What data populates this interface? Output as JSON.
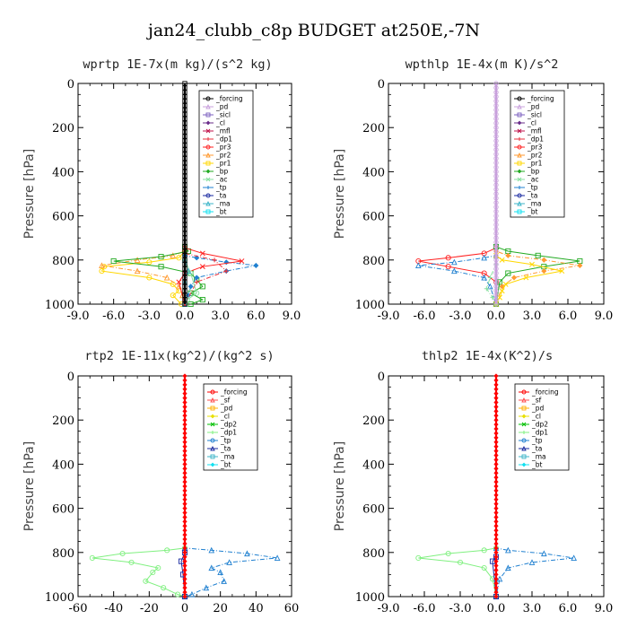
{
  "title": "jan24_clubb_c8p  BUDGET at250E,-7N",
  "colors": {
    "forcing": "#000000",
    "pd": "#c8a0dc",
    "sicl": "#7b5fbf",
    "cl": "#6a2c8a",
    "mfl": "#c0144c",
    "dp1": "#e8323c",
    "pr3": "#ff2020",
    "pr2": "#ff9a30",
    "pr1": "#ffd700",
    "bp": "#22aa22",
    "ac": "#88e0a0",
    "tp": "#2080d0",
    "ta": "#1a2aa0",
    "ma": "#3cb4c8",
    "bt": "#10e0f0",
    "forcing_red": "#ff0000",
    "sf": "#ff5050",
    "pd2": "#ffb000",
    "cl2": "#e8e000",
    "dp2": "#00c000",
    "dp1b": "#80f080"
  },
  "chart_data": [
    {
      "type": "line",
      "title": "wprtp  1E-7x(m kg)/(s^2 kg)",
      "ylabel": "Pressure [hPa]",
      "ylim": [
        1000,
        0
      ],
      "xlim": [
        -9,
        9
      ],
      "xticks": [
        "-9.0",
        "-6.0",
        "-3.0",
        "0.0",
        "3.0",
        "6.0",
        "9.0"
      ],
      "yticks": [
        "0",
        "200",
        "400",
        "600",
        "800",
        "1000"
      ],
      "legend": [
        "_forcing",
        "_pd",
        "_sicl",
        "_cl",
        "_mfl",
        "_dp1",
        "_pr3",
        "_pr2",
        "_pr1",
        "_bp",
        "_ac",
        "_tp",
        "_ta",
        "_ma",
        "_bt"
      ],
      "legend_position": "top-right",
      "series": [
        {
          "name": "_pr1",
          "color_key": "pr1",
          "x": [
            0,
            0,
            -0.5,
            -3,
            -6.8,
            -7,
            -3,
            -1,
            -0.5,
            -1,
            -0.3
          ],
          "y": [
            0,
            760,
            790,
            810,
            830,
            850,
            880,
            910,
            940,
            960,
            1000
          ]
        },
        {
          "name": "_pr2",
          "color_key": "pr2",
          "x": [
            0,
            0,
            -1,
            -4,
            -7,
            -4,
            -1.5,
            -0.5,
            -0.2,
            0
          ],
          "y": [
            0,
            760,
            780,
            800,
            825,
            850,
            880,
            920,
            960,
            1000
          ]
        },
        {
          "name": "_bp",
          "color_key": "bp",
          "x": [
            0,
            0,
            0.3,
            -2,
            -6,
            -2,
            0.5,
            1,
            1.5,
            0.5,
            1.5,
            0.5
          ],
          "y": [
            0,
            740,
            760,
            785,
            805,
            830,
            860,
            890,
            920,
            950,
            980,
            1000
          ]
        },
        {
          "name": "_tp",
          "color_key": "tp",
          "x": [
            0,
            0,
            1,
            3.5,
            6,
            3.5,
            1,
            0.5,
            0.3,
            0
          ],
          "y": [
            0,
            780,
            790,
            810,
            825,
            850,
            880,
            920,
            960,
            1000
          ]
        },
        {
          "name": "_pr3",
          "color_key": "pr3",
          "x": [
            0,
            0,
            1.5,
            4.8,
            1.5,
            0,
            -0.5,
            0
          ],
          "y": [
            0,
            745,
            770,
            805,
            830,
            860,
            900,
            1000
          ]
        },
        {
          "name": "_dp1",
          "color_key": "dp1",
          "x": [
            0,
            0,
            2.5,
            3.5,
            1,
            0
          ],
          "y": [
            0,
            770,
            800,
            850,
            900,
            1000
          ]
        },
        {
          "name": "_ac",
          "color_key": "ac",
          "x": [
            0,
            0,
            0.5,
            1,
            0.2,
            0
          ],
          "y": [
            0,
            800,
            860,
            950,
            980,
            1000
          ]
        },
        {
          "name": "_ma",
          "color_key": "ma",
          "x": [
            0,
            0,
            0.3,
            0,
            0
          ],
          "y": [
            0,
            800,
            850,
            900,
            1000
          ]
        },
        {
          "name": "_forcing",
          "color_key": "forcing",
          "x": [
            0,
            0
          ],
          "y": [
            0,
            1000
          ]
        }
      ]
    },
    {
      "type": "line",
      "title": "wpthlp  1E-4x(m K)/s^2",
      "ylabel": "Pressure [hPa]",
      "ylim": [
        1000,
        0
      ],
      "xlim": [
        -9,
        9
      ],
      "xticks": [
        "-9.0",
        "-6.0",
        "-3.0",
        "0.0",
        "3.0",
        "6.0",
        "9.0"
      ],
      "yticks": [
        "0",
        "200",
        "400",
        "600",
        "800",
        "1000"
      ],
      "legend": [
        "_forcing",
        "_pd",
        "_sicl",
        "_cl",
        "_mfl",
        "_dp1",
        "_pr3",
        "_pr2",
        "_pr1",
        "_bp",
        "_ac",
        "_tp",
        "_ta",
        "_ma",
        "_bt"
      ],
      "legend_position": "top-right",
      "series": [
        {
          "name": "_pr3",
          "color_key": "pr3",
          "x": [
            0,
            0,
            -1,
            -4,
            -6.5,
            -4,
            -1,
            0,
            0
          ],
          "y": [
            0,
            745,
            770,
            790,
            805,
            830,
            860,
            900,
            1000
          ]
        },
        {
          "name": "_tp",
          "color_key": "tp",
          "x": [
            0,
            0,
            -1,
            -3.5,
            -6.5,
            -3.5,
            -1,
            -0.5,
            0
          ],
          "y": [
            0,
            780,
            790,
            810,
            825,
            850,
            880,
            920,
            1000
          ]
        },
        {
          "name": "_bp",
          "color_key": "bp",
          "x": [
            0,
            0,
            1,
            3.5,
            7,
            4,
            1,
            0.3,
            0
          ],
          "y": [
            0,
            740,
            760,
            780,
            805,
            830,
            860,
            900,
            1000
          ]
        },
        {
          "name": "_pr2",
          "color_key": "pr2",
          "x": [
            0,
            0,
            1,
            4,
            7,
            4,
            1.5,
            0.5,
            0
          ],
          "y": [
            0,
            760,
            780,
            800,
            825,
            850,
            880,
            920,
            1000
          ]
        },
        {
          "name": "_pr1",
          "color_key": "pr1",
          "x": [
            0,
            0,
            0.5,
            3,
            5.5,
            2.5,
            0.8,
            0.5,
            0.3,
            0
          ],
          "y": [
            0,
            780,
            800,
            820,
            850,
            880,
            910,
            940,
            970,
            1000
          ]
        },
        {
          "name": "_ac",
          "color_key": "ac",
          "x": [
            0,
            0,
            -0.5,
            -0.8,
            -0.3,
            0
          ],
          "y": [
            0,
            820,
            880,
            930,
            970,
            1000
          ]
        },
        {
          "name": "_pd",
          "color_key": "pd",
          "x": [
            0,
            0
          ],
          "y": [
            0,
            1000
          ]
        }
      ]
    },
    {
      "type": "line",
      "title": "rtp2  1E-11x(kg^2)/(kg^2 s)",
      "ylabel": "Pressure [hPa]",
      "ylim": [
        1000,
        0
      ],
      "xlim": [
        -60,
        60
      ],
      "xticks": [
        "-60",
        "-40",
        "-20",
        "0",
        "20",
        "40",
        "60"
      ],
      "yticks": [
        "0",
        "200",
        "400",
        "600",
        "800",
        "1000"
      ],
      "legend": [
        "_forcing",
        "_sf",
        "_pd",
        "_cl",
        "_dp2",
        "_dp1",
        "_tp",
        "_ta",
        "_ma",
        "_bt"
      ],
      "legend_position": "top-right",
      "series": [
        {
          "name": "_dp1",
          "color_key": "dp1b",
          "x": [
            0,
            0,
            -10,
            -35,
            -52,
            -30,
            -15,
            -18,
            -22,
            -12,
            -4,
            0
          ],
          "y": [
            0,
            780,
            790,
            805,
            825,
            845,
            870,
            890,
            930,
            960,
            990,
            1000
          ]
        },
        {
          "name": "_tp",
          "color_key": "tp",
          "x": [
            0,
            0,
            15,
            35,
            52,
            25,
            15,
            20,
            22,
            12,
            4,
            0
          ],
          "y": [
            0,
            780,
            790,
            805,
            825,
            845,
            870,
            890,
            930,
            960,
            990,
            1000
          ]
        },
        {
          "name": "_ta",
          "color_key": "ta",
          "x": [
            0,
            0,
            -2,
            -1,
            0
          ],
          "y": [
            0,
            800,
            840,
            900,
            1000
          ]
        },
        {
          "name": "_forcing",
          "color_key": "forcing_red",
          "x": [
            0,
            0
          ],
          "y": [
            0,
            1000
          ]
        }
      ]
    },
    {
      "type": "line",
      "title": "thlp2  1E-4x(K^2)/s",
      "ylabel": "Pressure [hPa]",
      "ylim": [
        1000,
        0
      ],
      "xlim": [
        -9,
        9
      ],
      "xticks": [
        "-9.0",
        "-6.0",
        "-3.0",
        "0.0",
        "3.0",
        "6.0",
        "9.0"
      ],
      "yticks": [
        "0",
        "200",
        "400",
        "600",
        "800",
        "1000"
      ],
      "legend": [
        "_forcing",
        "_sf",
        "_pd",
        "_cl",
        "_dp2",
        "_dp1",
        "_tp",
        "_ta",
        "_ma",
        "_bt"
      ],
      "legend_position": "top-right",
      "series": [
        {
          "name": "_dp1",
          "color_key": "dp1b",
          "x": [
            0,
            0,
            -1,
            -4,
            -6.5,
            -3,
            -1,
            -0.3,
            0
          ],
          "y": [
            0,
            780,
            790,
            805,
            825,
            845,
            870,
            920,
            1000
          ]
        },
        {
          "name": "_tp",
          "color_key": "tp",
          "x": [
            0,
            0,
            1,
            4,
            6.5,
            3,
            1,
            0.3,
            0
          ],
          "y": [
            0,
            780,
            790,
            805,
            825,
            845,
            870,
            920,
            1000
          ]
        },
        {
          "name": "_ta",
          "color_key": "ta",
          "x": [
            0,
            0,
            -0.3,
            0
          ],
          "y": [
            0,
            820,
            840,
            1000
          ]
        },
        {
          "name": "_forcing",
          "color_key": "forcing_red",
          "x": [
            0,
            0
          ],
          "y": [
            0,
            1000
          ]
        }
      ]
    }
  ]
}
